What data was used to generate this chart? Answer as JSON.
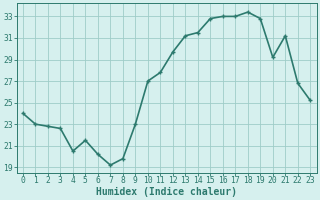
{
  "x": [
    0,
    1,
    2,
    3,
    4,
    5,
    6,
    7,
    8,
    9,
    10,
    11,
    12,
    13,
    14,
    15,
    16,
    17,
    18,
    19,
    20,
    21,
    22,
    23
  ],
  "y": [
    24.0,
    23.0,
    22.8,
    22.6,
    20.5,
    21.5,
    20.2,
    19.2,
    19.8,
    23.0,
    27.0,
    27.8,
    29.7,
    31.2,
    31.5,
    32.8,
    33.0,
    33.0,
    33.4,
    32.8,
    29.2,
    31.2,
    26.8,
    25.2
  ],
  "xlabel": "Humidex (Indice chaleur)",
  "xlim": [
    -0.5,
    23.5
  ],
  "ylim": [
    18.5,
    34.2
  ],
  "yticks": [
    19,
    21,
    23,
    25,
    27,
    29,
    31,
    33
  ],
  "xticks": [
    0,
    1,
    2,
    3,
    4,
    5,
    6,
    7,
    8,
    9,
    10,
    11,
    12,
    13,
    14,
    15,
    16,
    17,
    18,
    19,
    20,
    21,
    22,
    23
  ],
  "line_color": "#2d7a6e",
  "marker_color": "#2d7a6e",
  "bg_color": "#d6f0ee",
  "grid_color": "#9ecdc8",
  "tick_label_fontsize": 5.8,
  "xlabel_fontsize": 7.0,
  "line_width": 1.2,
  "marker_size": 3.5
}
